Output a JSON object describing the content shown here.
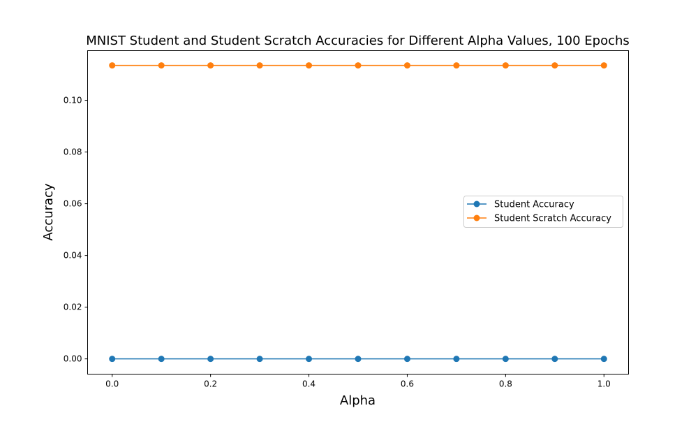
{
  "chart_data": {
    "type": "line",
    "title": "MNIST Student and Student Scratch Accuracies for Different Alpha Values, 100 Epochs",
    "xlabel": "Alpha",
    "ylabel": "Accuracy",
    "xlim": [
      -0.05,
      1.05
    ],
    "ylim": [
      -0.0059,
      0.1192
    ],
    "xticks": [
      0.0,
      0.2,
      0.4,
      0.6,
      0.8,
      1.0
    ],
    "xtick_labels": [
      "0.0",
      "0.2",
      "0.4",
      "0.6",
      "0.8",
      "1.0"
    ],
    "yticks": [
      0.0,
      0.02,
      0.04,
      0.06,
      0.08,
      0.1
    ],
    "ytick_labels": [
      "0.00",
      "0.02",
      "0.04",
      "0.06",
      "0.08",
      "0.10"
    ],
    "grid": false,
    "legend_position": "center-right",
    "x": [
      0.0,
      0.1,
      0.2,
      0.3,
      0.4,
      0.5,
      0.6,
      0.7,
      0.8,
      0.9,
      1.0
    ],
    "series": [
      {
        "name": "Student Accuracy",
        "color": "#1f77b4",
        "marker": "circle",
        "values": [
          0.0,
          0.0,
          0.0,
          0.0,
          0.0,
          0.0,
          0.0,
          0.0,
          0.0,
          0.0,
          0.0
        ]
      },
      {
        "name": "Student Scratch Accuracy",
        "color": "#ff7f0e",
        "marker": "circle",
        "values": [
          0.1135,
          0.1135,
          0.1135,
          0.1135,
          0.1135,
          0.1135,
          0.1135,
          0.1135,
          0.1135,
          0.1135,
          0.1135
        ]
      }
    ]
  }
}
